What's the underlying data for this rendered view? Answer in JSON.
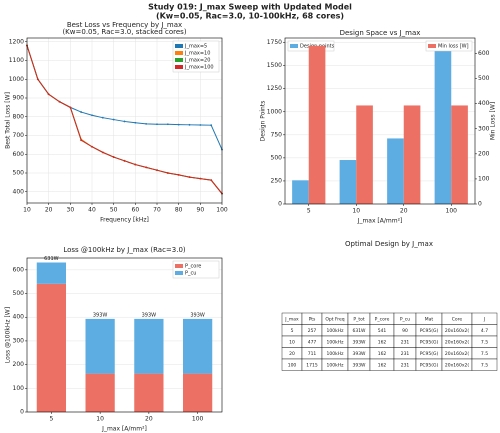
{
  "title": "Study 019: J_max Sweep with Updated Model",
  "subtitle": "(Kw=0.05, Rac=3.0, 10-100kHz, 68 cores)",
  "chart_data": [
    {
      "type": "line",
      "title": "Best Loss vs Frequency by J_max",
      "subtitle": "(Kw=0.05, Rac=3.0, stacked cores)",
      "xlabel": "Frequency [kHz]",
      "ylabel": "Best Total Loss [W]",
      "x": [
        10,
        15,
        20,
        25,
        30,
        35,
        40,
        45,
        50,
        55,
        60,
        65,
        70,
        75,
        80,
        85,
        90,
        95,
        100
      ],
      "series": [
        {
          "name": "J_max=5",
          "color": "#1f77b4",
          "values": [
            1180,
            1000,
            920,
            880,
            850,
            825,
            808,
            795,
            785,
            775,
            768,
            762,
            760,
            760,
            758,
            757,
            756,
            755,
            625
          ]
        },
        {
          "name": "J_max=10",
          "color": "#ff7f0e",
          "values": [
            1180,
            1000,
            920,
            880,
            850,
            680,
            640,
            610,
            585,
            565,
            545,
            530,
            515,
            500,
            490,
            478,
            470,
            462,
            390
          ]
        },
        {
          "name": "J_max=20",
          "color": "#2ca02c",
          "values": [
            1180,
            1000,
            920,
            880,
            850,
            675,
            640,
            610,
            585,
            565,
            545,
            530,
            515,
            500,
            490,
            478,
            470,
            462,
            390
          ]
        },
        {
          "name": "J_max=100",
          "color": "#d62728",
          "values": [
            1180,
            1000,
            920,
            880,
            850,
            675,
            640,
            610,
            585,
            565,
            545,
            530,
            515,
            500,
            490,
            478,
            470,
            462,
            390
          ]
        }
      ],
      "xlim": [
        10,
        100
      ],
      "xticks": [
        10,
        20,
        30,
        40,
        50,
        60,
        70,
        80,
        90,
        100
      ],
      "ylim": [
        340,
        1220
      ],
      "yticks": [
        400,
        500,
        600,
        700,
        800,
        900,
        1000,
        1100,
        1200
      ],
      "grid": true,
      "legend": "upper right"
    },
    {
      "type": "dualbar",
      "title": "Design Space vs J_max",
      "xlabel": "J_max [A/mm²]",
      "ylabel": "Design Points",
      "y2label": "Min Loss [W]",
      "categories": [
        "5",
        "10",
        "20",
        "100"
      ],
      "series": [
        {
          "name": "Design points",
          "color": "#5dade2",
          "values": [
            257,
            477,
            711,
            1715
          ],
          "legend": "upper left"
        },
        {
          "name": "Min loss [W]",
          "color": "#ec7063",
          "values": [
            631,
            393,
            393,
            393
          ],
          "axis": "y2",
          "legend": "upper right"
        }
      ],
      "ylim": [
        0,
        1800
      ],
      "yticks": [
        0,
        250,
        500,
        750,
        1000,
        1250,
        1500,
        1750
      ],
      "y2lim": [
        0,
        662
      ],
      "y2ticks": [
        0,
        100,
        200,
        300,
        400,
        500,
        600
      ],
      "grid": true
    },
    {
      "type": "stacked",
      "title": "Loss @100kHz by J_max (Rac=3.0)",
      "xlabel": "J_max [A/mm²]",
      "ylabel": "Loss @100kHz [W]",
      "categories": [
        "5",
        "10",
        "20",
        "100"
      ],
      "series": [
        {
          "name": "P_core",
          "color": "#ec7063",
          "values": [
            541,
            162,
            162,
            162
          ]
        },
        {
          "name": "P_cu",
          "color": "#5dade2",
          "values": [
            90,
            231,
            231,
            231
          ]
        }
      ],
      "total_labels": [
        "631W",
        "393W",
        "393W",
        "393W"
      ],
      "ylim": [
        0,
        650
      ],
      "yticks": [
        0,
        100,
        200,
        300,
        400,
        500,
        600
      ],
      "grid": true,
      "legend": "upper right"
    }
  ],
  "table": {
    "title": "Optimal Design by J_max",
    "columns": [
      "J_max",
      "Pts",
      "Opt Freq",
      "P_tot",
      "P_core",
      "P_cu",
      "Mat",
      "Core",
      "J"
    ],
    "rows": [
      [
        "5",
        "257",
        "100kHz",
        "631W",
        "541",
        "90",
        "PC95(G)",
        "20x160x2(",
        "4.7"
      ],
      [
        "10",
        "477",
        "100kHz",
        "393W",
        "162",
        "231",
        "PC95(G)",
        "20x160x2(",
        "7.5"
      ],
      [
        "20",
        "711",
        "100kHz",
        "393W",
        "162",
        "231",
        "PC95(G)",
        "20x160x2(",
        "7.5"
      ],
      [
        "100",
        "1715",
        "100kHz",
        "393W",
        "162",
        "231",
        "PC95(G)",
        "20x160x2(",
        "7.5"
      ]
    ]
  }
}
